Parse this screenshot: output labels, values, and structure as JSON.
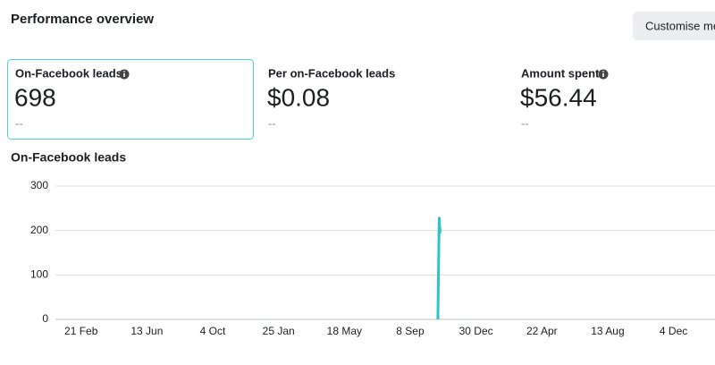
{
  "header": {
    "title": "Performance overview",
    "button": "Customise metrics"
  },
  "metrics": [
    {
      "label": "On-Facebook leads",
      "value": "698",
      "comparison": "--"
    },
    {
      "label": "Per on-Facebook leads",
      "value": "$0.08",
      "comparison": "--"
    },
    {
      "label": "Amount spent",
      "value": "$56.44",
      "comparison": "--"
    }
  ],
  "chart_data": {
    "type": "line",
    "title": "On-Facebook leads",
    "series": [
      {
        "name": "On-Facebook leads",
        "color": "#2ec4c6",
        "x": [
          5.42,
          5.44,
          5.45,
          5.455
        ],
        "values": [
          0,
          228,
          195,
          205
        ]
      }
    ],
    "xlim": [
      -0.39,
      9.63
    ],
    "xticks": [
      {
        "value": 0,
        "label": "21 Feb"
      },
      {
        "value": 1,
        "label": "13 Jun"
      },
      {
        "value": 2,
        "label": "4 Oct"
      },
      {
        "value": 3,
        "label": "25 Jan"
      },
      {
        "value": 4,
        "label": "18 May"
      },
      {
        "value": 5,
        "label": "8 Sep"
      },
      {
        "value": 6,
        "label": "30 Dec"
      },
      {
        "value": 7,
        "label": "22 Apr"
      },
      {
        "value": 8,
        "label": "13 Aug"
      },
      {
        "value": 9,
        "label": "4 Dec"
      }
    ],
    "ylim": [
      0,
      300
    ],
    "yticks": [
      0,
      100,
      200,
      300
    ],
    "grid": true
  }
}
